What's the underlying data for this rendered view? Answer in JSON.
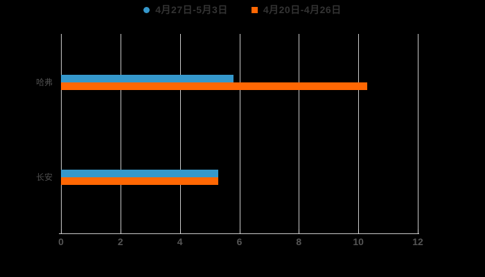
{
  "background": "#000000",
  "legend": {
    "items": [
      {
        "label": "4月27日-5月3日",
        "marker": "circle",
        "color": "#3598cc"
      },
      {
        "label": "4月20日-4月26日",
        "marker": "square",
        "color": "#ff6703"
      }
    ]
  },
  "chart_data": {
    "type": "bar",
    "orientation": "horizontal",
    "title": "",
    "categories": [
      "哈弗",
      "长安"
    ],
    "series": [
      {
        "name": "4月27日-5月3日",
        "color": "#3598cc",
        "values": [
          5.8,
          5.3
        ]
      },
      {
        "name": "4月20日-4月26日",
        "color": "#ff6703",
        "values": [
          10.3,
          5.3
        ]
      }
    ],
    "xlim": [
      0,
      12
    ],
    "xticks": [
      0,
      2,
      4,
      6,
      8,
      10,
      12
    ],
    "grid": true,
    "legend_position": "top-center",
    "colors": {
      "gridline": "#cccccc",
      "axis_line": "#cccccc",
      "legend_text": "#333333",
      "category_label": "#4d4d4d",
      "tick_label": "#555555"
    }
  }
}
